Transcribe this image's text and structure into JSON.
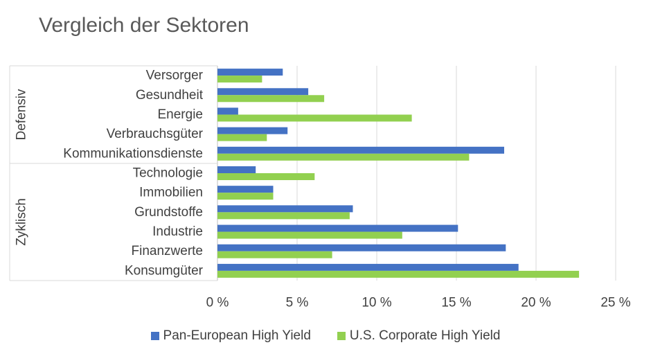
{
  "chart_data": {
    "type": "bar",
    "orientation": "horizontal",
    "title": "Vergleich der Sektoren",
    "categories": [
      "Versorger",
      "Gesundheit",
      "Energie",
      "Verbrauchsgüter",
      "Kommunikationsdienste",
      "Technologie",
      "Immobilien",
      "Grundstoffe",
      "Industrie",
      "Finanzwerte",
      "Konsumgüter"
    ],
    "groups": [
      {
        "label": "Defensiv",
        "categories": [
          "Versorger",
          "Gesundheit",
          "Energie",
          "Verbrauchsgüter",
          "Kommunikationsdienste"
        ]
      },
      {
        "label": "Zyklisch",
        "categories": [
          "Technologie",
          "Immobilien",
          "Grundstoffe",
          "Industrie",
          "Finanzwerte",
          "Konsumgüter"
        ]
      }
    ],
    "series": [
      {
        "name": "Pan-European High Yield",
        "color": "#4472C4",
        "values": [
          4.1,
          5.7,
          1.3,
          4.4,
          18.0,
          2.4,
          3.5,
          8.5,
          15.1,
          18.1,
          18.9
        ]
      },
      {
        "name": "U.S. Corporate High Yield",
        "color": "#92D050",
        "values": [
          2.8,
          6.7,
          12.2,
          3.1,
          15.8,
          6.1,
          3.5,
          8.3,
          11.6,
          7.2,
          22.7
        ]
      }
    ],
    "xlim": [
      0,
      25
    ],
    "xticks": [
      0,
      5,
      10,
      15,
      20,
      25
    ],
    "xtick_labels": [
      "0 %",
      "5 %",
      "10 %",
      "15 %",
      "20 %",
      "25 %"
    ],
    "xlabel": "",
    "ylabel": "",
    "grid": true,
    "legend_position": "bottom"
  }
}
